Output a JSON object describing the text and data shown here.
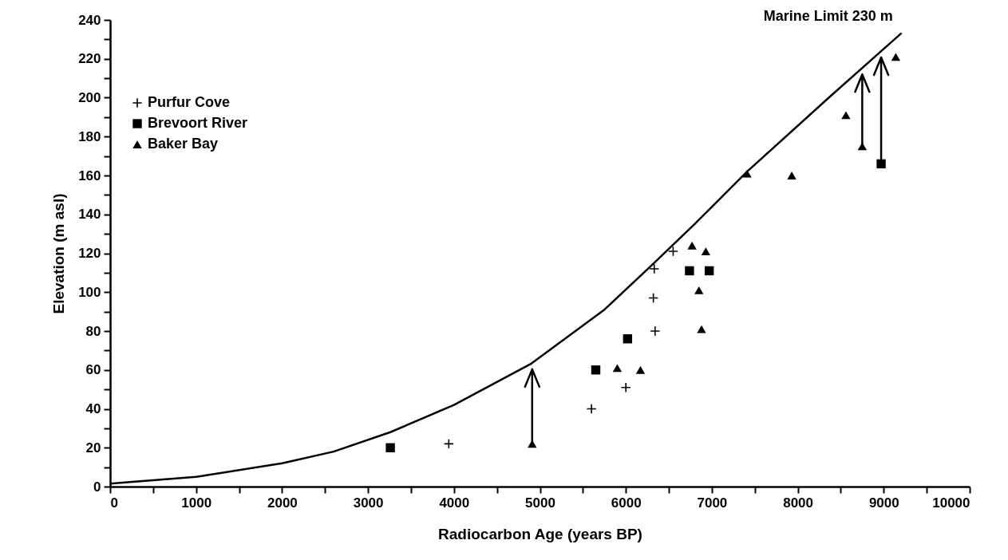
{
  "chart_data": {
    "type": "scatter",
    "xlabel": "Radiocarbon Age (years BP)",
    "ylabel": "Elevation (m asl)",
    "xlim": [
      0,
      10000
    ],
    "ylim": [
      0,
      240
    ],
    "xticks": [
      0,
      {
        "value": 500,
        "label": null
      },
      1000,
      {
        "value": 1500,
        "label": null
      },
      2000,
      {
        "value": 2500,
        "label": null
      },
      3000,
      {
        "value": 3500,
        "label": null
      },
      4000,
      {
        "value": 4500,
        "label": null
      },
      5000,
      {
        "value": 5500,
        "label": null
      },
      6000,
      {
        "value": 6500,
        "label": null
      },
      7000,
      {
        "value": 7500,
        "label": null
      },
      8000,
      {
        "value": 8500,
        "label": null
      },
      9000,
      {
        "value": 9500,
        "label": null
      },
      10000
    ],
    "yticks": [
      0,
      {
        "value": 10,
        "label": null
      },
      20,
      {
        "value": 30,
        "label": null
      },
      40,
      {
        "value": 50,
        "label": null
      },
      60,
      {
        "value": 70,
        "label": null
      },
      80,
      {
        "value": 90,
        "label": null
      },
      100,
      {
        "value": 110,
        "label": null
      },
      120,
      {
        "value": 130,
        "label": null
      },
      140,
      {
        "value": 150,
        "label": null
      },
      160,
      {
        "value": 170,
        "label": null
      },
      180,
      {
        "value": 190,
        "label": null
      },
      200,
      {
        "value": 210,
        "label": null
      },
      220,
      {
        "value": 230,
        "label": null
      },
      240
    ],
    "grid": false,
    "legend": "top left",
    "annotations": [
      "Marine Limit 230 m"
    ],
    "series": [
      {
        "type": "line",
        "color": "#000000",
        "line_style": "solid",
        "x": [
          0,
          1000,
          2000,
          2600,
          3260,
          4000,
          4890,
          5750,
          6280,
          6800,
          7410,
          8360,
          9200
        ],
        "values": [
          1.5,
          5,
          12,
          18,
          28,
          42,
          63,
          91,
          113,
          135,
          162,
          200,
          233
        ]
      },
      {
        "name": "Purfur Cove",
        "color": "#000000",
        "marker": "cross",
        "x": [
          3940,
          5600,
          6000,
          6340,
          6320,
          6330,
          6550
        ],
        "values": [
          22,
          40,
          51,
          80,
          97,
          112,
          121
        ]
      },
      {
        "name": "Brevoort River",
        "color": "#000000",
        "marker": "square",
        "x": [
          3260,
          5650,
          6020,
          6740,
          6970,
          8970
        ],
        "values": [
          20,
          60,
          76,
          111,
          111,
          166
        ]
      },
      {
        "name": "Baker Bay",
        "color": "#000000",
        "marker": "triangle",
        "x": [
          4910,
          5900,
          6170,
          6770,
          6930,
          6850,
          6880,
          7410,
          7930,
          8560,
          8750,
          9140
        ],
        "values": [
          22,
          61,
          60,
          124,
          121,
          101,
          81,
          161,
          160,
          191,
          175,
          221
        ]
      }
    ]
  }
}
